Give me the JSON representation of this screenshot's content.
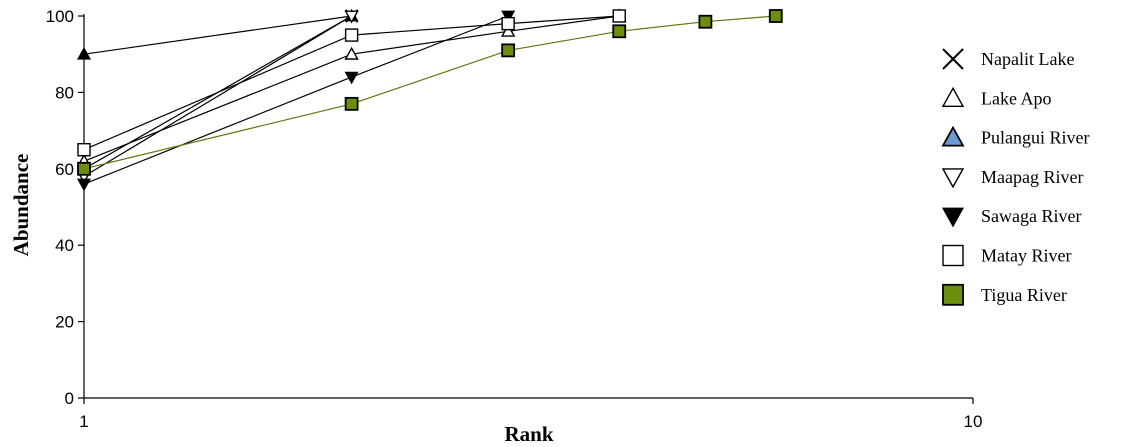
{
  "chart_data": {
    "type": "line",
    "xlabel": "Rank",
    "ylabel": "Abundance",
    "x_scale": "log",
    "xlim": [
      1,
      10
    ],
    "ylim": [
      0,
      100
    ],
    "x_ticks": [
      "1",
      "10"
    ],
    "y_ticks": [
      "0",
      "20",
      "40",
      "60",
      "80",
      "100"
    ],
    "legend_position": "right",
    "series": [
      {
        "name": "Napalit Lake",
        "marker": "cross",
        "color": "#000000",
        "x": [
          1,
          2
        ],
        "y": [
          60,
          100
        ]
      },
      {
        "name": "Lake Apo",
        "marker": "triangle-up-open",
        "color": "#000000",
        "x": [
          1,
          2,
          3,
          4
        ],
        "y": [
          62,
          90,
          96,
          100
        ]
      },
      {
        "name": "Pulangui River",
        "marker": "triangle-up-filled",
        "color": "#000000",
        "x": [
          1,
          2
        ],
        "y": [
          90,
          100
        ]
      },
      {
        "name": "Maapag River",
        "marker": "triangle-down-open",
        "color": "#000000",
        "x": [
          1,
          2
        ],
        "y": [
          58,
          100
        ]
      },
      {
        "name": "Sawaga River",
        "marker": "triangle-down-filled",
        "color": "#000000",
        "x": [
          1,
          2,
          3
        ],
        "y": [
          56,
          84,
          100
        ]
      },
      {
        "name": "Matay River",
        "marker": "square-open",
        "color": "#000000",
        "x": [
          1,
          2,
          3,
          4
        ],
        "y": [
          65,
          95,
          98,
          100
        ]
      },
      {
        "name": "Tigua River",
        "marker": "square-filled",
        "color": "#5a7a10",
        "x": [
          1,
          2,
          3,
          4,
          5,
          6
        ],
        "y": [
          60,
          77,
          91,
          96,
          98.5,
          100
        ]
      }
    ]
  },
  "colors": {
    "pulangui_fill": "#6b9bd2",
    "tigua_fill": "#6b8e0e",
    "tigua_line": "#5a7a10"
  }
}
